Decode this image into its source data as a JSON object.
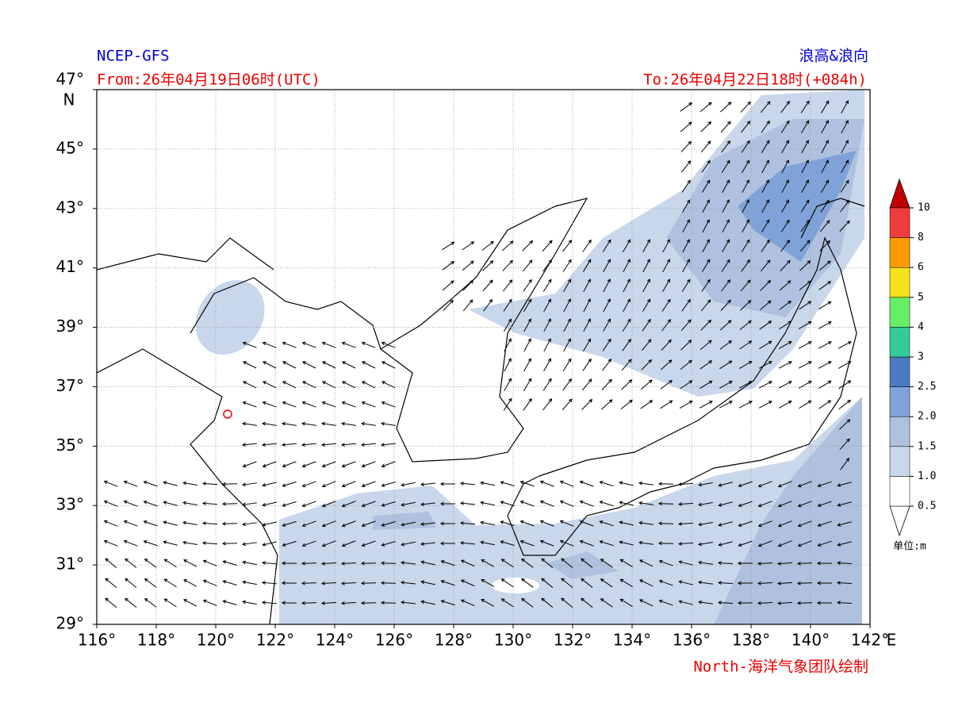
{
  "header": {
    "model": "NCEP-GFS",
    "product": "浪高&浪向",
    "from": "From:26年04月19日06时(UTC)",
    "to": "To:26年04月22日18时(+084h)"
  },
  "map": {
    "lat_labels": [
      "47°",
      "45°",
      "43°",
      "41°",
      "39°",
      "37°",
      "35°",
      "33°",
      "31°",
      "29°"
    ],
    "lat_unit": "N",
    "lon_labels": [
      "116°",
      "118°",
      "120°",
      "122°",
      "124°",
      "126°",
      "128°",
      "130°",
      "132°",
      "134°",
      "136°",
      "138°",
      "140°",
      "142°"
    ],
    "lon_unit": "E"
  },
  "colorbar": {
    "labels": [
      "0.5",
      "1.0",
      "1.5",
      "2.0",
      "2.5",
      "3",
      "4",
      "5",
      "6",
      "8",
      "10"
    ],
    "colors": [
      "#ffffff",
      "#c9d7eb",
      "#afc1de",
      "#7fa3d9",
      "#4a7abf",
      "#33cc99",
      "#66ee66",
      "#f5e21a",
      "#ff9900",
      "#ee3b3b"
    ],
    "unit": "单位:m"
  },
  "footer": {
    "credit": "North-海洋气象团队绘制"
  }
}
